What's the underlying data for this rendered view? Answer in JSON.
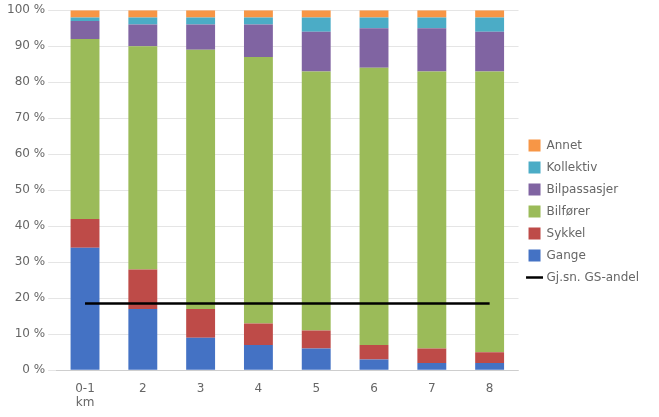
{
  "chart_data": {
    "type": "bar",
    "stacked": true,
    "categories": [
      "0-1\nkm",
      "2",
      "3",
      "4",
      "5",
      "6",
      "7",
      "8"
    ],
    "series": [
      {
        "name": "Gange",
        "color": "#4472C4",
        "values": [
          34,
          17,
          9,
          7,
          6,
          3,
          2,
          2
        ]
      },
      {
        "name": "Sykkel",
        "color": "#BE4B48",
        "values": [
          8,
          11,
          8,
          6,
          5,
          4,
          4,
          3
        ]
      },
      {
        "name": "Bilfører",
        "color": "#9BBB59",
        "values": [
          50,
          62,
          72,
          74,
          72,
          77,
          77,
          78
        ]
      },
      {
        "name": "Bilpassasjer",
        "color": "#8064A2",
        "values": [
          5,
          6,
          7,
          9,
          11,
          11,
          12,
          11
        ]
      },
      {
        "name": "Kollektiv",
        "color": "#4BACC6",
        "values": [
          1,
          2,
          2,
          2,
          4,
          3,
          3,
          4
        ]
      },
      {
        "name": "Annet",
        "color": "#F79646",
        "values": [
          2,
          2,
          2,
          2,
          2,
          2,
          2,
          2
        ]
      },
      {
        "name": "Gj.sn. GS-andel",
        "type": "line",
        "color": "#000000",
        "values": [
          18.5,
          18.5,
          18.5,
          18.5,
          18.5,
          18.5,
          18.5,
          18.5
        ]
      }
    ],
    "ylim": [
      0,
      100
    ],
    "yticks": [
      {
        "value": 0,
        "label": "0 %"
      },
      {
        "value": 10,
        "label": "10 %"
      },
      {
        "value": 20,
        "label": "20 %"
      },
      {
        "value": 30,
        "label": "30 %"
      },
      {
        "value": 40,
        "label": "40 %"
      },
      {
        "value": 50,
        "label": "50 %"
      },
      {
        "value": 60,
        "label": "60 %"
      },
      {
        "value": 70,
        "label": "70 %"
      },
      {
        "value": 80,
        "label": "80 %"
      },
      {
        "value": 90,
        "label": "90 %"
      },
      {
        "value": 100,
        "label": "100 %"
      }
    ],
    "grid": true,
    "legend": "right"
  }
}
